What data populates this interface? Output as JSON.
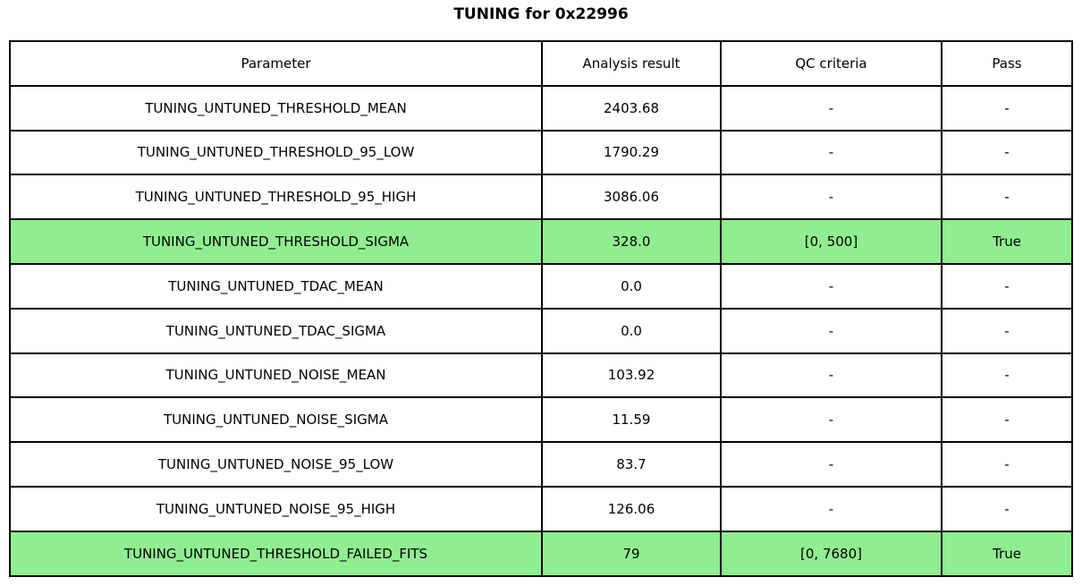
{
  "title": "TUNING for 0x22996",
  "chart_data": {
    "type": "table",
    "title": "TUNING for 0x22996",
    "columns": [
      "Parameter",
      "Analysis result",
      "QC criteria",
      "Pass"
    ],
    "rows": [
      [
        "TUNING_UNTUNED_THRESHOLD_MEAN",
        "2403.68",
        "-",
        "-"
      ],
      [
        "TUNING_UNTUNED_THRESHOLD_95_LOW",
        "1790.29",
        "-",
        "-"
      ],
      [
        "TUNING_UNTUNED_THRESHOLD_95_HIGH",
        "3086.06",
        "-",
        "-"
      ],
      [
        "TUNING_UNTUNED_THRESHOLD_SIGMA",
        "328.0",
        "[0, 500]",
        "True"
      ],
      [
        "TUNING_UNTUNED_TDAC_MEAN",
        "0.0",
        "-",
        "-"
      ],
      [
        "TUNING_UNTUNED_TDAC_SIGMA",
        "0.0",
        "-",
        "-"
      ],
      [
        "TUNING_UNTUNED_NOISE_MEAN",
        "103.92",
        "-",
        "-"
      ],
      [
        "TUNING_UNTUNED_NOISE_SIGMA",
        "11.59",
        "-",
        "-"
      ],
      [
        "TUNING_UNTUNED_NOISE_95_LOW",
        "83.7",
        "-",
        "-"
      ],
      [
        "TUNING_UNTUNED_NOISE_95_HIGH",
        "126.06",
        "-",
        "-"
      ],
      [
        "TUNING_UNTUNED_THRESHOLD_FAILED_FITS",
        "79",
        "[0, 7680]",
        "True"
      ]
    ],
    "highlighted_rows": [
      3,
      10
    ],
    "highlight_color": "#90ee90",
    "border_color": "#000000",
    "background_color": "#ffffff",
    "legend_position": "none",
    "grid": true
  }
}
